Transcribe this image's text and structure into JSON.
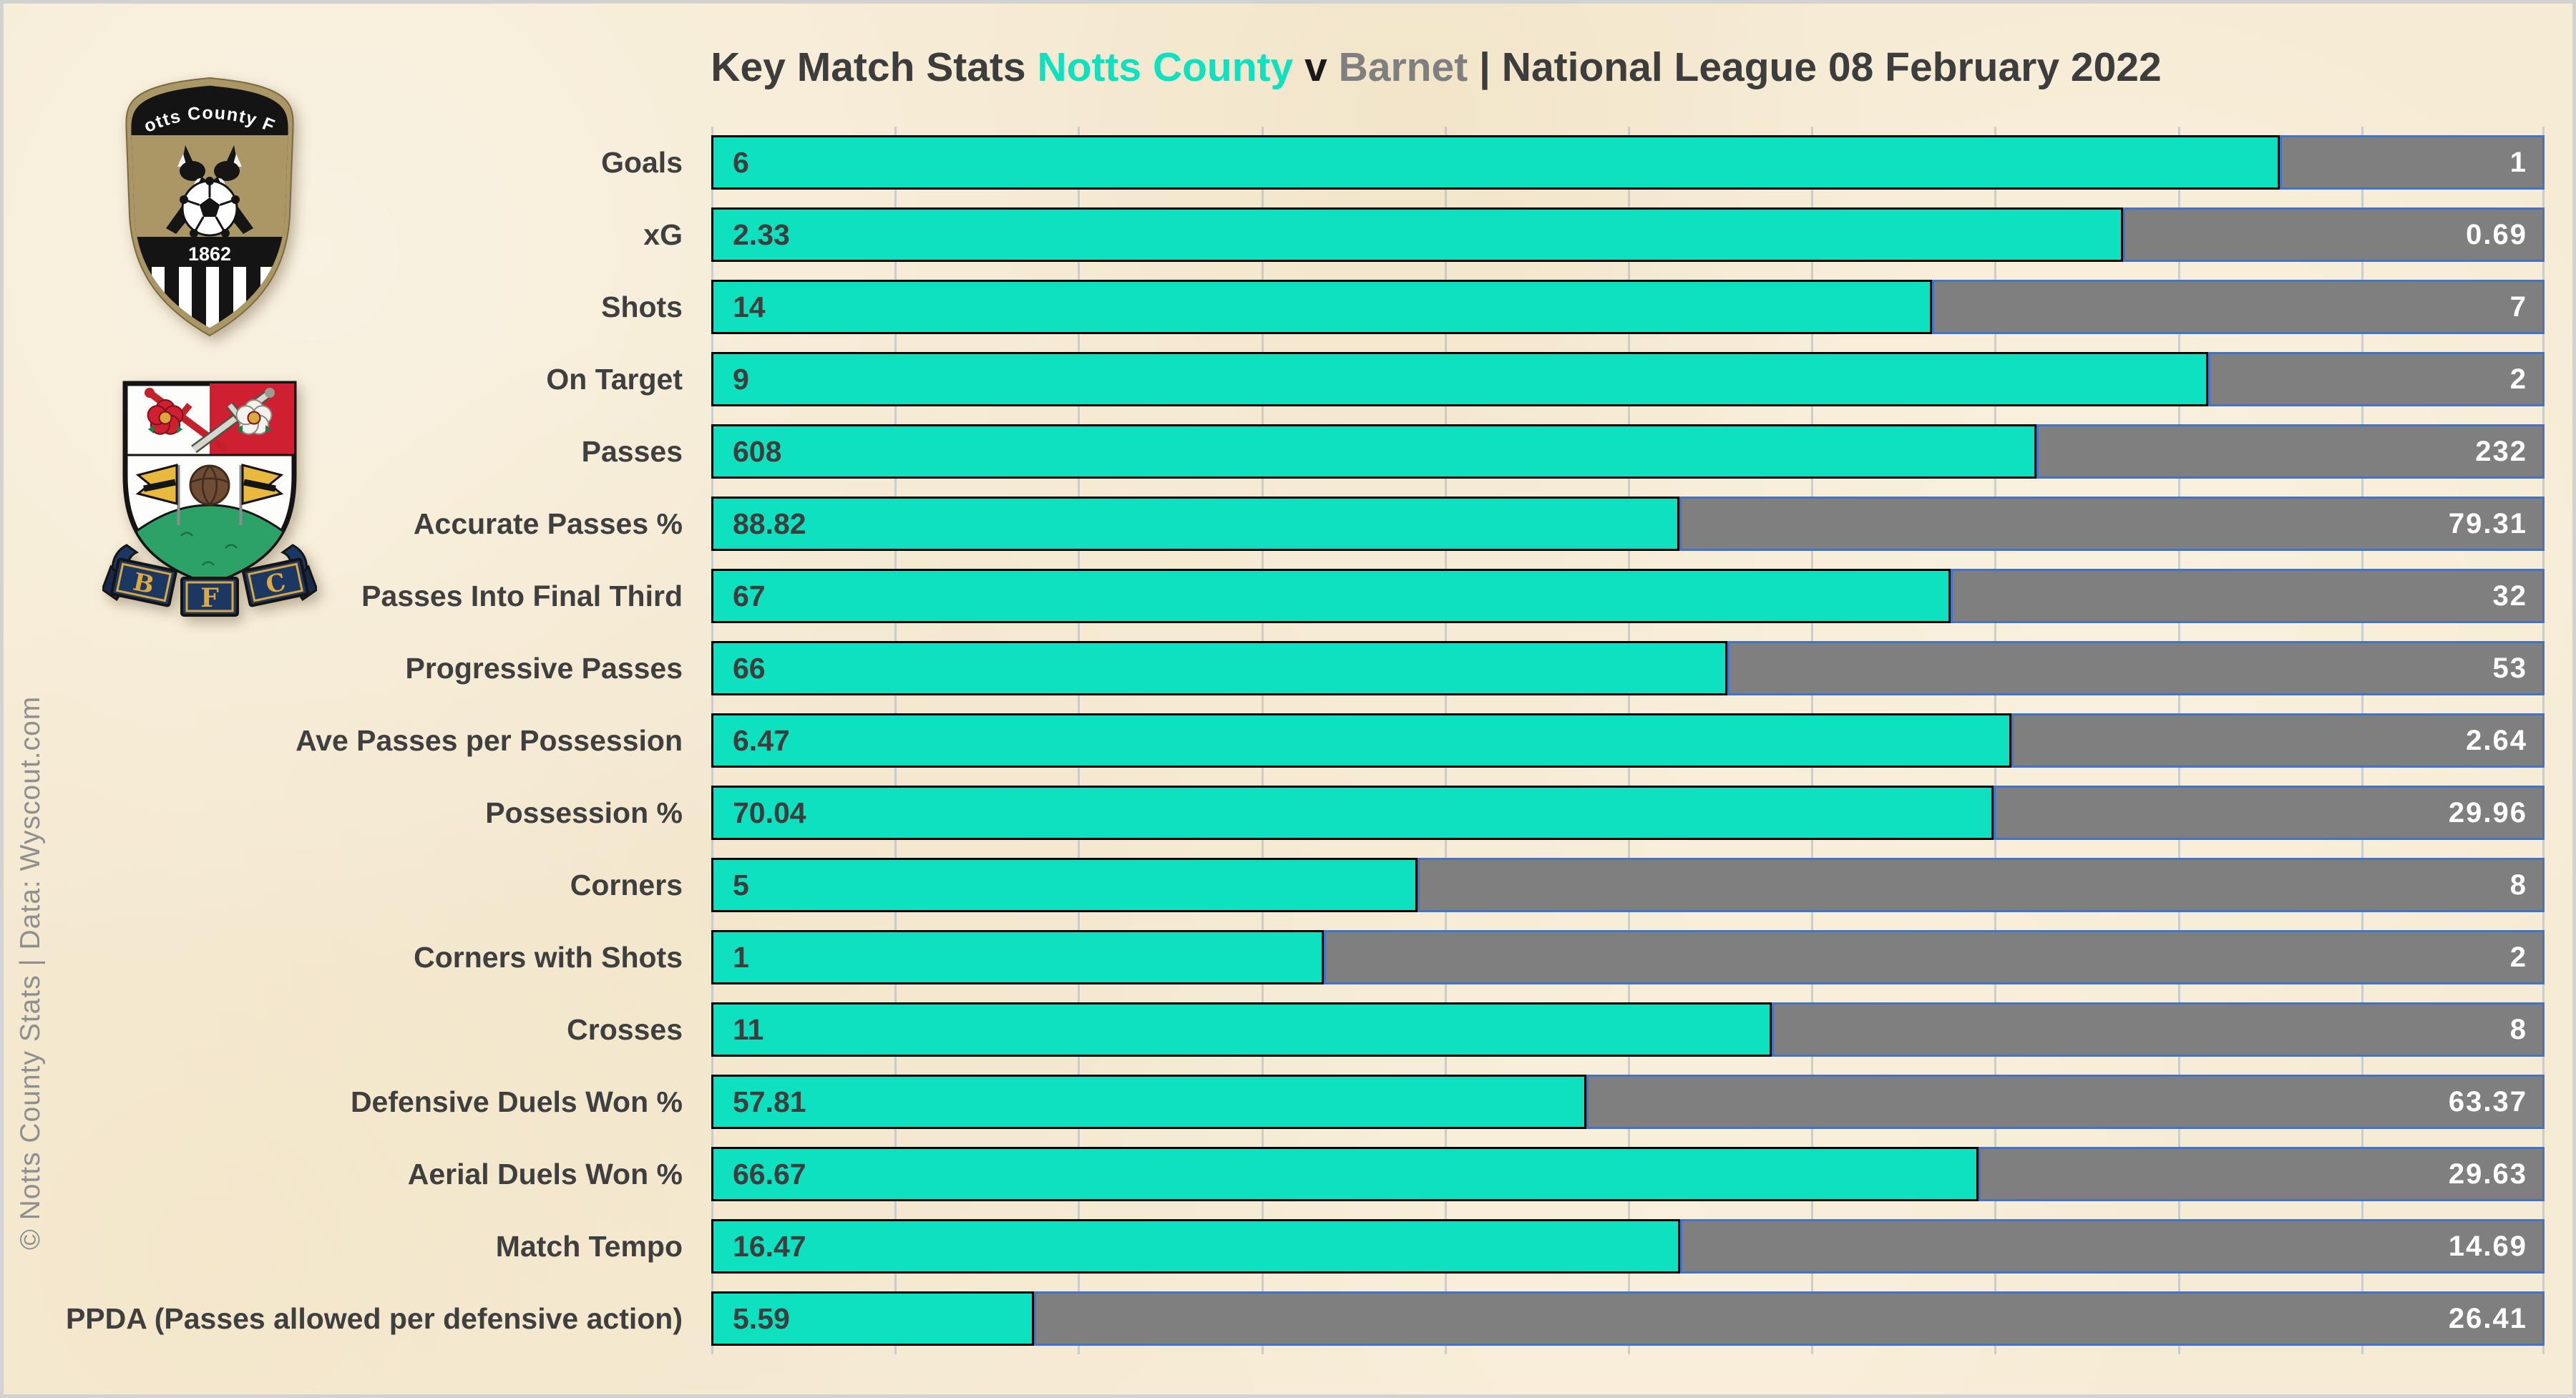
{
  "title": {
    "prefix": "Key Match Stats",
    "home_team": "Notts County",
    "versus": "v",
    "away_team": "Barnet",
    "suffix": "| National League 08 February 2022"
  },
  "watermark": "© Notts County Stats | Data: Wyscout.com",
  "logos": {
    "home": {
      "name": "notts-county-fc-crest",
      "text": "Notts County FC",
      "founded": "1862"
    },
    "away": {
      "name": "barnet-fc-crest",
      "letters": {
        "b": "B",
        "f": "F",
        "c": "C"
      }
    }
  },
  "colors": {
    "background": "#f6ebd4",
    "frame": "#d2d2d2",
    "home": "#0de1c0",
    "home_border": "#000000",
    "away": "#7f7f7f",
    "away_border": "#4472c4",
    "gridline": "#a8b2c4",
    "title_text": "#3d3d3d",
    "versus_text": "#1a1a1a",
    "away_text": "#7f7f7f",
    "label_text": "#3f3f3f",
    "value_text_dark": "#3d3d3d",
    "value_text_light": "#ffffff",
    "watermark_text": "#8f8f8f"
  },
  "chart_data": {
    "type": "bar",
    "variant": "horizontal-100%-stacked",
    "title": "Key Match Stats Notts County v Barnet | National League 08 February 2022",
    "legend": "none",
    "gridlines": {
      "vertical_divisions": 10
    },
    "value_labels": "home value left-inside (dark), away value right-inside (white)",
    "categories": [
      "Goals",
      "xG",
      "Shots",
      "On Target",
      "Passes",
      "Accurate Passes %",
      "Passes Into Final Third",
      "Progressive Passes",
      "Ave Passes per Possession",
      "Possession %",
      "Corners",
      "Corners with Shots",
      "Crosses",
      "Defensive Duels Won %",
      "Aerial Duels Won %",
      "Match Tempo",
      "PPDA (Passes allowed per defensive action)"
    ],
    "series": [
      {
        "name": "Notts County",
        "color": "#0de1c0",
        "values": [
          6,
          2.33,
          14,
          9,
          608,
          88.82,
          67,
          66,
          6.47,
          70.04,
          5,
          1,
          11,
          57.81,
          66.67,
          16.47,
          5.59
        ]
      },
      {
        "name": "Barnet",
        "color": "#7f7f7f",
        "values": [
          1,
          0.69,
          7,
          2,
          232,
          79.31,
          32,
          53,
          2.64,
          29.96,
          8,
          2,
          8,
          63.37,
          29.63,
          14.69,
          26.41
        ]
      }
    ]
  }
}
